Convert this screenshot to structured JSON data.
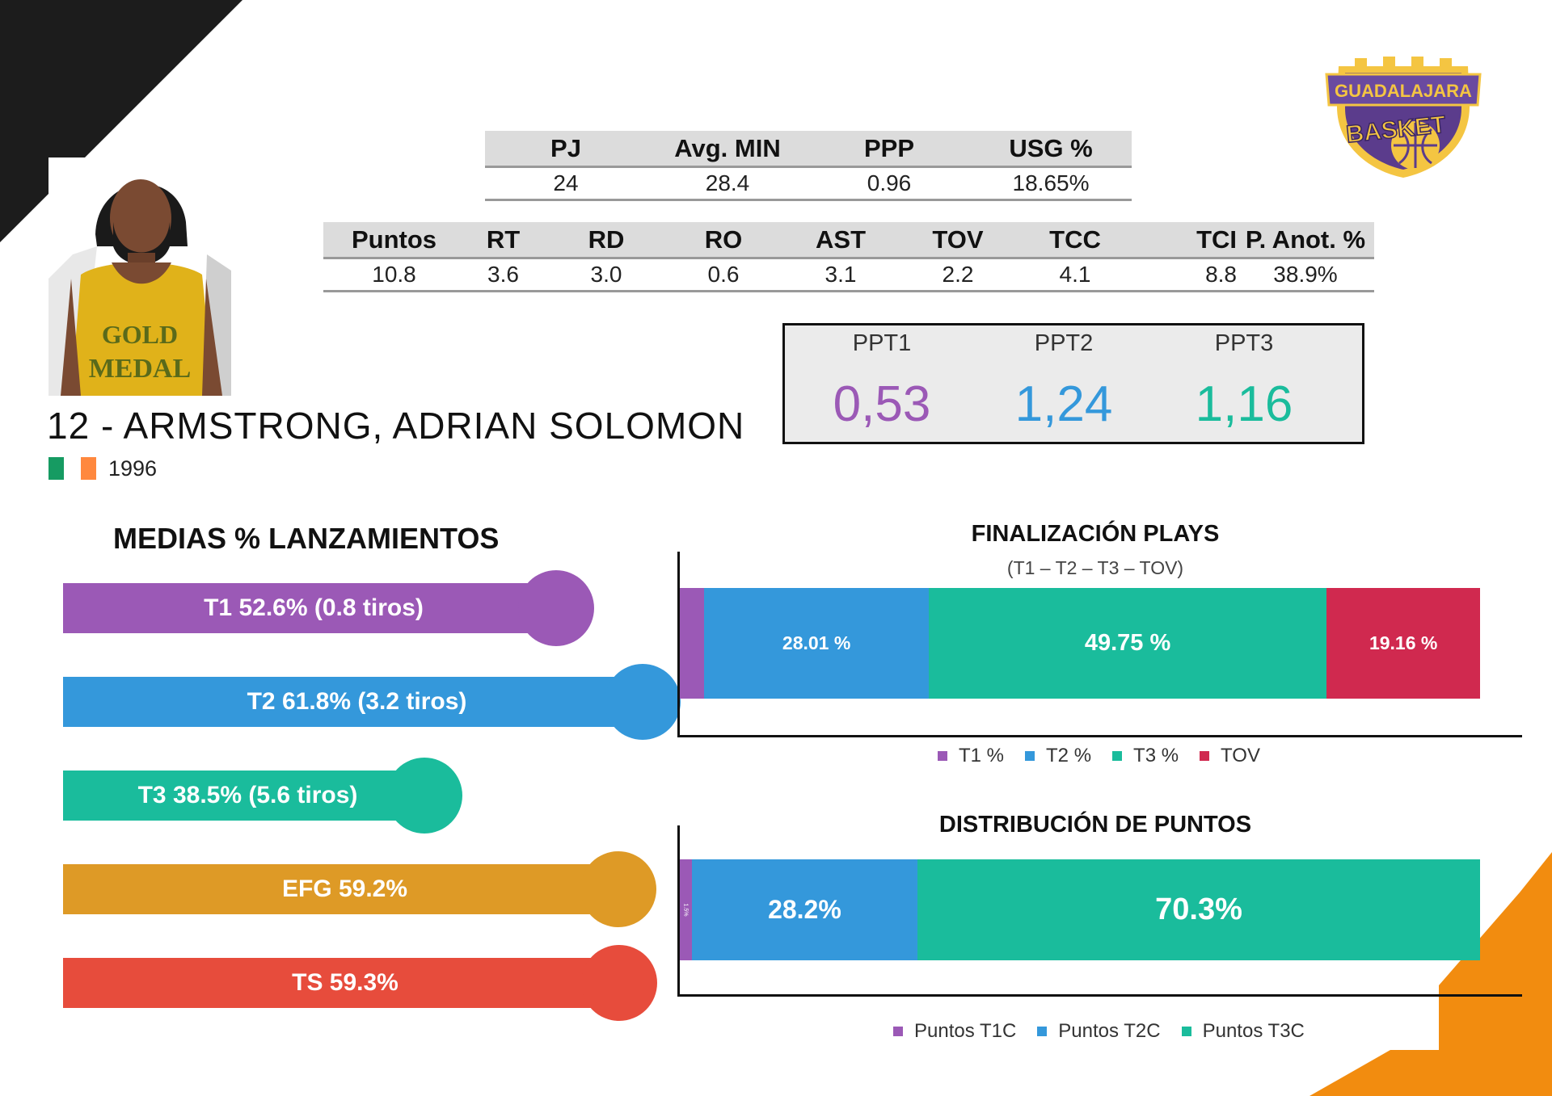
{
  "team": {
    "logo_text_top": "GUADALAJARA",
    "logo_text_bottom": "BASKET"
  },
  "player": {
    "name": "12 - ARMSTRONG, ADRIAN SOLOMON",
    "birth_year": "1996",
    "shirt_text_line1": "GOLD",
    "shirt_text_line2": "MEDAL",
    "flag_colors": [
      "#169b62",
      "#ffffff",
      "#ff883e"
    ]
  },
  "summary_table": {
    "headers": [
      "PJ",
      "Avg. MIN",
      "PPP",
      "USG %"
    ],
    "values": [
      "24",
      "28.4",
      "0.96",
      "18.65%"
    ]
  },
  "stats_table": {
    "headers": [
      "Puntos",
      "RT",
      "RD",
      "RO",
      "AST",
      "TOV",
      "TCC",
      "TCI",
      "P. Anot. %"
    ],
    "values": [
      "10.8",
      "3.6",
      "3.0",
      "0.6",
      "3.1",
      "2.2",
      "4.1",
      "8.8",
      "38.9%"
    ]
  },
  "ppt": [
    {
      "label": "PPT1",
      "value": "0,53",
      "color": "#9b59b6"
    },
    {
      "label": "PPT2",
      "value": "1,24",
      "color": "#3498db"
    },
    {
      "label": "PPT3",
      "value": "1,16",
      "color": "#1abc9c"
    }
  ],
  "shooting": {
    "title": "MEDIAS % LANZAMIENTOS",
    "items": [
      {
        "label": "T1 52.6% (0.8 tiros)",
        "value": 52.6,
        "color": "#9b59b6"
      },
      {
        "label": "T2 61.8% (3.2 tiros)",
        "value": 61.8,
        "color": "#3498db"
      },
      {
        "label": "T3 38.5% (5.6 tiros)",
        "value": 38.5,
        "color": "#1abc9c"
      },
      {
        "label": "EFG 59.2%",
        "value": 59.2,
        "color": "#de9a26"
      },
      {
        "label": "TS 59.3%",
        "value": 59.3,
        "color": "#e74c3c"
      }
    ]
  },
  "chart_data": [
    {
      "type": "bar",
      "title": "FINALIZACIÓN PLAYS",
      "subtitle": "(T1 – T2 – T3 – TOV)",
      "stacked": true,
      "orientation": "horizontal",
      "series": [
        {
          "name": "T1 %",
          "value": 3.08,
          "label": "",
          "color": "#9b59b6"
        },
        {
          "name": "T2 %",
          "value": 28.01,
          "label": "28.01 %",
          "color": "#3498db"
        },
        {
          "name": "T3 %",
          "value": 49.75,
          "label": "49.75 %",
          "color": "#1abc9c"
        },
        {
          "name": "TOV",
          "value": 19.16,
          "label": "19.16 %",
          "color": "#d0294f"
        }
      ],
      "legend": "bottom"
    },
    {
      "type": "bar",
      "title": "DISTRIBUCIÓN DE PUNTOS",
      "stacked": true,
      "orientation": "horizontal",
      "series": [
        {
          "name": "Puntos T1C",
          "value": 1.5,
          "label": "1.5%",
          "color": "#9b59b6"
        },
        {
          "name": "Puntos T2C",
          "value": 28.2,
          "label": "28.2%",
          "color": "#3498db"
        },
        {
          "name": "Puntos T3C",
          "value": 70.3,
          "label": "70.3%",
          "color": "#1abc9c"
        }
      ],
      "legend": "bottom"
    }
  ]
}
